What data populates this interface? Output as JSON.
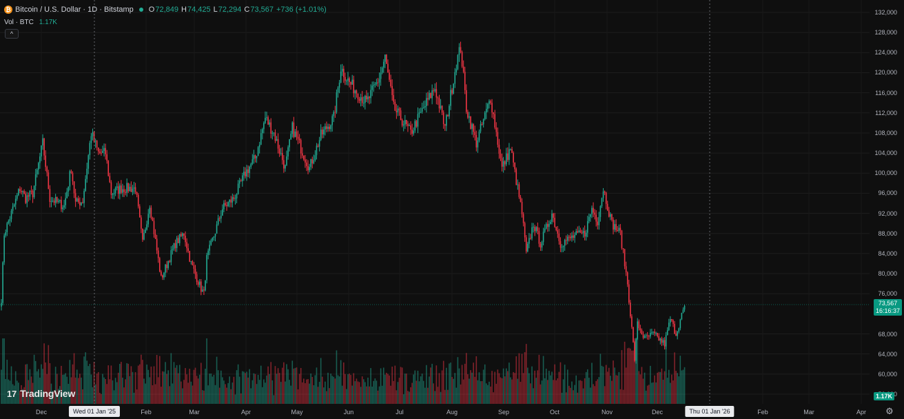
{
  "header": {
    "symbol_title": "Bitcoin / U.S. Dollar · 1D · Bitstamp",
    "coin_glyph": "₿",
    "ohlc": {
      "o_label": "O",
      "o_value": "72,849",
      "h_label": "H",
      "h_value": "74,425",
      "l_label": "L",
      "l_value": "72,294",
      "c_label": "C",
      "c_value": "73,567",
      "change": "+736 (+1.01%)"
    },
    "volume_label": "Vol · BTC",
    "volume_value": "1.17K",
    "collapse_glyph": "^"
  },
  "price_axis": {
    "labels": [
      "132,000",
      "128,000",
      "124,000",
      "120,000",
      "116,000",
      "112,000",
      "108,000",
      "104,000",
      "100,000",
      "96,000",
      "92,000",
      "88,000",
      "84,000",
      "80,000",
      "76,000",
      "68,000",
      "64,000",
      "60,000",
      "56,000"
    ]
  },
  "current_price": {
    "price": "73,567",
    "countdown": "16:16:37"
  },
  "volume_tag": "1.17K",
  "time_axis": {
    "labels": [
      "Dec",
      "Feb",
      "Mar",
      "Apr",
      "May",
      "Jun",
      "Jul",
      "Aug",
      "Sep",
      "Oct",
      "Nov",
      "Dec",
      "Feb",
      "Mar",
      "Apr"
    ],
    "highlight_left": "Wed 01 Jan '25",
    "highlight_right": "Thu 01 Jan '26"
  },
  "brand": {
    "name": "TradingView",
    "glyph": "17"
  },
  "settings_glyph": "⚙",
  "colors": {
    "up": "#22ab94",
    "down": "#f23645",
    "background": "#0f0f0f",
    "accent": "#089981"
  },
  "chart_data": {
    "type": "candlestick",
    "title": "Bitcoin / U.S. Dollar · 1D · Bitstamp",
    "ylim": [
      52000,
      134000
    ],
    "grid": true,
    "start_date": "2024-11-18",
    "x_ticks": [
      "Dec",
      "Feb",
      "Mar",
      "Apr",
      "May",
      "Jun",
      "Jul",
      "Aug",
      "Sep",
      "Oct",
      "Nov",
      "Dec",
      "Feb",
      "Mar",
      "Apr"
    ],
    "y_ticks": [
      56000,
      60000,
      64000,
      68000,
      76000,
      80000,
      84000,
      88000,
      92000,
      96000,
      100000,
      104000,
      108000,
      112000,
      116000,
      120000,
      124000,
      128000,
      132000
    ],
    "last_close": 73567,
    "series": [
      {
        "name": "Close",
        "anchors": [
          [
            "2024-11-18",
            75000
          ],
          [
            "2024-11-20",
            88000
          ],
          [
            "2024-11-25",
            92000
          ],
          [
            "2024-12-01",
            97000
          ],
          [
            "2024-12-05",
            95000
          ],
          [
            "2024-12-10",
            96000
          ],
          [
            "2024-12-17",
            106000
          ],
          [
            "2024-12-22",
            95000
          ],
          [
            "2024-12-28",
            94000
          ],
          [
            "2025-01-01",
            93500
          ],
          [
            "2025-01-06",
            101000
          ],
          [
            "2025-01-09",
            94000
          ],
          [
            "2025-01-14",
            94500
          ],
          [
            "2025-01-20",
            108000
          ],
          [
            "2025-01-25",
            104000
          ],
          [
            "2025-01-30",
            104000
          ],
          [
            "2025-02-03",
            96000
          ],
          [
            "2025-02-10",
            97000
          ],
          [
            "2025-02-20",
            97000
          ],
          [
            "2025-02-25",
            86000
          ],
          [
            "2025-03-02",
            94000
          ],
          [
            "2025-03-10",
            79000
          ],
          [
            "2025-03-20",
            86000
          ],
          [
            "2025-03-26",
            88000
          ],
          [
            "2025-03-31",
            82000
          ],
          [
            "2025-04-07",
            77000
          ],
          [
            "2025-04-09",
            76000
          ],
          [
            "2025-04-11",
            83000
          ],
          [
            "2025-04-22",
            93000
          ],
          [
            "2025-04-30",
            95000
          ],
          [
            "2025-05-08",
            100000
          ],
          [
            "2025-05-15",
            103000
          ],
          [
            "2025-05-22",
            111000
          ],
          [
            "2025-05-28",
            108000
          ],
          [
            "2025-06-05",
            101000
          ],
          [
            "2025-06-10",
            109000
          ],
          [
            "2025-06-22",
            101000
          ],
          [
            "2025-06-30",
            107500
          ],
          [
            "2025-07-09",
            111000
          ],
          [
            "2025-07-14",
            121000
          ],
          [
            "2025-07-20",
            118000
          ],
          [
            "2025-08-01",
            114000
          ],
          [
            "2025-08-10",
            119000
          ],
          [
            "2025-08-14",
            123000
          ],
          [
            "2025-08-20",
            113000
          ],
          [
            "2025-09-01",
            108000
          ],
          [
            "2025-09-10",
            113000
          ],
          [
            "2025-09-18",
            117000
          ],
          [
            "2025-09-25",
            109000
          ],
          [
            "2025-10-03",
            122000
          ],
          [
            "2025-10-06",
            125000
          ],
          [
            "2025-10-10",
            113000
          ],
          [
            "2025-10-17",
            106000
          ],
          [
            "2025-10-27",
            115000
          ],
          [
            "2025-11-04",
            101000
          ],
          [
            "2025-11-10",
            105000
          ],
          [
            "2025-11-18",
            92000
          ],
          [
            "2025-11-21",
            84000
          ],
          [
            "2025-11-26",
            90000
          ],
          [
            "2025-12-01",
            86000
          ],
          [
            "2025-12-09",
            92000
          ],
          [
            "2025-12-15",
            86000
          ],
          [
            "2025-12-25",
            87500
          ],
          [
            "2026-01-01",
            88000
          ],
          [
            "2026-01-06",
            93000
          ],
          [
            "2026-01-10",
            90500
          ],
          [
            "2026-01-14",
            97000
          ],
          [
            "2026-01-20",
            90000
          ],
          [
            "2026-01-26",
            88000
          ],
          [
            "2026-01-31",
            78000
          ],
          [
            "2026-02-05",
            63000
          ],
          [
            "2026-02-07",
            70000
          ],
          [
            "2026-02-12",
            67000
          ],
          [
            "2026-02-18",
            68000
          ],
          [
            "2026-02-26",
            66000
          ],
          [
            "2026-03-02",
            71000
          ],
          [
            "2026-03-06",
            68000
          ],
          [
            "2026-03-12",
            73567
          ]
        ]
      }
    ]
  }
}
